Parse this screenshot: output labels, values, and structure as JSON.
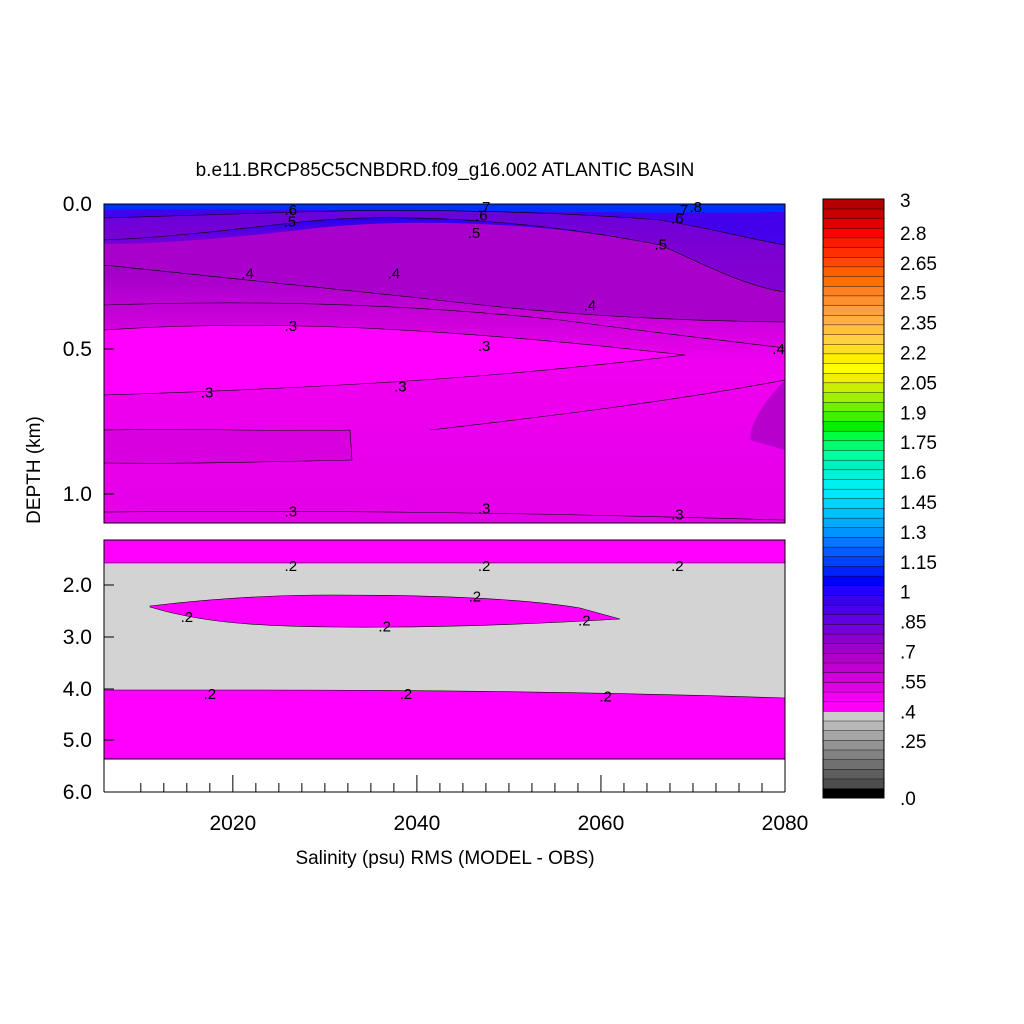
{
  "chart_data": {
    "type": "heatmap",
    "title": "b.e11.BRCP85C5CNBDRD.f09_g16.002 ATLANTIC BASIN",
    "xlabel": "Salinity (psu) RMS (MODEL - OBS)",
    "ylabel": "DEPTH (km)",
    "x_ticks": [
      "2020",
      "2040",
      "2060",
      "2080"
    ],
    "x_range": [
      2006,
      2080
    ],
    "y_ticks_upper": [
      "0.0",
      "0.5",
      "1.0"
    ],
    "y_ticks_lower": [
      "2.0",
      "3.0",
      "4.0",
      "5.0",
      "6.0"
    ],
    "y_tick_extra": "1.0",
    "y_range_upper_km": [
      0,
      1.1
    ],
    "y_range_lower_km": [
      1.1,
      6.0
    ],
    "colorbar": {
      "labels": [
        "3",
        "2.8",
        "2.65",
        "2.5",
        "2.35",
        "2.2",
        "2.05",
        "1.9",
        "1.75",
        "1.6",
        "1.45",
        "1.3",
        "1.15",
        "1",
        ".85",
        ".7",
        ".55",
        ".4",
        ".25",
        ".0"
      ],
      "min": 0,
      "max": 3,
      "colors": [
        "#000000",
        "#4d4d4d",
        "#5e5e5e",
        "#707070",
        "#828282",
        "#949494",
        "#a6a6a6",
        "#b8b8b8",
        "#cbcbcb",
        "#ff00ff",
        "#f200f2",
        "#e000e6",
        "#d000da",
        "#c000d0",
        "#b000c8",
        "#9e00c6",
        "#8a00cf",
        "#7600d9",
        "#6000e3",
        "#4a00eb",
        "#3800f4",
        "#2400ff",
        "#0000ff",
        "#0022ff",
        "#0040ff",
        "#005cff",
        "#0078ff",
        "#0094ff",
        "#00aaff",
        "#00c0ff",
        "#00d4ff",
        "#00e6ff",
        "#00f0f0",
        "#00f0d8",
        "#00f0c0",
        "#00ffa0",
        "#00ff70",
        "#00ff40",
        "#00f000",
        "#40f000",
        "#70f000",
        "#a0f000",
        "#c8f000",
        "#f0f000",
        "#ffff00",
        "#ffee00",
        "#ffdd22",
        "#ffd040",
        "#ffc040",
        "#ffb040",
        "#ffa040",
        "#ff9030",
        "#ff8020",
        "#ff7000",
        "#ff6000",
        "#ff4800",
        "#ff3000",
        "#ff1a00",
        "#ff0000",
        "#e00000",
        "#c80000",
        "#b40000"
      ]
    },
    "contour_labels": [
      {
        "text": ".6",
        "x": 2026.3,
        "depth_km": 0.02
      },
      {
        "text": ".5",
        "x": 2026.2,
        "depth_km": 0.06
      },
      {
        "text": ".7",
        "x": 2047.3,
        "depth_km": 0.01
      },
      {
        "text": ".6",
        "x": 2047.0,
        "depth_km": 0.04
      },
      {
        "text": ".5",
        "x": 2046.2,
        "depth_km": 0.1
      },
      {
        "text": ".8",
        "x": 2070.3,
        "depth_km": 0.01
      },
      {
        "text": ".7",
        "x": 2068.8,
        "depth_km": 0.02
      },
      {
        "text": ".6",
        "x": 2068.3,
        "depth_km": 0.05
      },
      {
        "text": ".5",
        "x": 2066.5,
        "depth_km": 0.14
      },
      {
        "text": ".4",
        "x": 2021.6,
        "depth_km": 0.24
      },
      {
        "text": ".4",
        "x": 2037.5,
        "depth_km": 0.24
      },
      {
        "text": ".4",
        "x": 2058.8,
        "depth_km": 0.35
      },
      {
        "text": ".4",
        "x": 2079.3,
        "depth_km": 0.5
      },
      {
        "text": ".3",
        "x": 2026.3,
        "depth_km": 0.42
      },
      {
        "text": ".3",
        "x": 2047.3,
        "depth_km": 0.49
      },
      {
        "text": ".3",
        "x": 2017.2,
        "depth_km": 0.65
      },
      {
        "text": ".3",
        "x": 2038.2,
        "depth_km": 0.63
      },
      {
        "text": ".3",
        "x": 2026.3,
        "depth_km": 1.06
      },
      {
        "text": ".3",
        "x": 2047.3,
        "depth_km": 1.05
      },
      {
        "text": ".3",
        "x": 2068.3,
        "depth_km": 1.07
      },
      {
        "text": ".2",
        "x": 2026.3,
        "depth_km": 1.57
      },
      {
        "text": ".2",
        "x": 2047.3,
        "depth_km": 1.57
      },
      {
        "text": ".2",
        "x": 2068.3,
        "depth_km": 1.57
      },
      {
        "text": ".2",
        "x": 2046.3,
        "depth_km": 2.22
      },
      {
        "text": ".2",
        "x": 2015.0,
        "depth_km": 2.62
      },
      {
        "text": ".2",
        "x": 2036.5,
        "depth_km": 2.8
      },
      {
        "text": ".2",
        "x": 2058.2,
        "depth_km": 2.68
      },
      {
        "text": ".2",
        "x": 2017.5,
        "depth_km": 4.1
      },
      {
        "text": ".2",
        "x": 2038.8,
        "depth_km": 4.1
      },
      {
        "text": ".2",
        "x": 2060.5,
        "depth_km": 4.15
      }
    ]
  }
}
